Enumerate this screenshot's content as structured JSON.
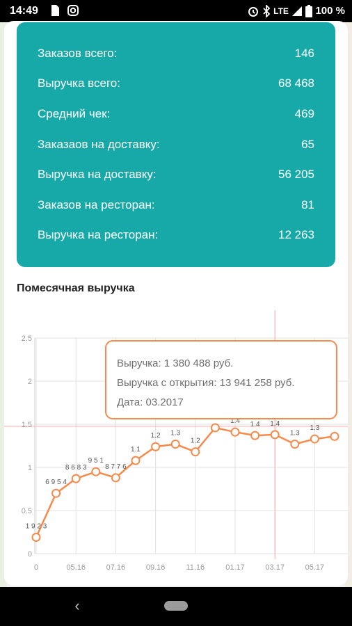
{
  "status_bar": {
    "time": "14:49",
    "network": "LTE",
    "battery": "100 %",
    "left_icons": [
      "doc-icon",
      "instagram-icon"
    ],
    "right_icons": [
      "alarm-icon",
      "bluetooth-icon",
      "signal-icon",
      "battery-icon"
    ]
  },
  "stats": [
    {
      "label": "Заказов всего:",
      "value": "146"
    },
    {
      "label": "Выручка всего:",
      "value": "68 468"
    },
    {
      "label": "Средний чек:",
      "value": "469"
    },
    {
      "label": "Заказаов на доставку:",
      "value": "65"
    },
    {
      "label": "Выручка на доставку:",
      "value": "56 205"
    },
    {
      "label": "Заказов на ресторан:",
      "value": "81"
    },
    {
      "label": "Выручка на ресторан:",
      "value": "12 263"
    }
  ],
  "chart_title": "Помесячная выручка",
  "tooltip": {
    "line1": "Выручка: 1 380 488 руб.",
    "line2": "Выручка с открытия: 13 941 258 руб.",
    "line3": "Дата: 03.2017"
  },
  "chart_data": {
    "type": "line",
    "y_ticks": [
      "0",
      "0.5",
      "1",
      "1.5",
      "2",
      "2.5"
    ],
    "x_ticks": [
      "0",
      "05.16",
      "07.16",
      "09.16",
      "11.16",
      "01.17",
      "03.17",
      "05.17"
    ],
    "ylim": [
      0,
      2.5
    ],
    "values": [
      0.19,
      0.7,
      0.87,
      0.95,
      0.88,
      1.08,
      1.24,
      1.27,
      1.18,
      1.46,
      1.41,
      1.37,
      1.38,
      1.27,
      1.33,
      1.36
    ],
    "data_labels": [
      "1 9 2 3",
      "6 9 5 4",
      "8 6 8 3",
      "9 5 1",
      "8 7 7 6",
      "1.1",
      "1.2",
      "1.3",
      "1.2",
      "",
      "1.4",
      "1.4",
      "1.4",
      "1.3",
      "1.3",
      ""
    ],
    "selected_index": 12,
    "grid": true,
    "line_color": "#f58a4b",
    "marker_fill": "#ffffff",
    "crosshair_color": "#f4a6a6"
  },
  "colors": {
    "stats_bg": "#17a9a8",
    "tooltip_border": "#f58a4b"
  }
}
